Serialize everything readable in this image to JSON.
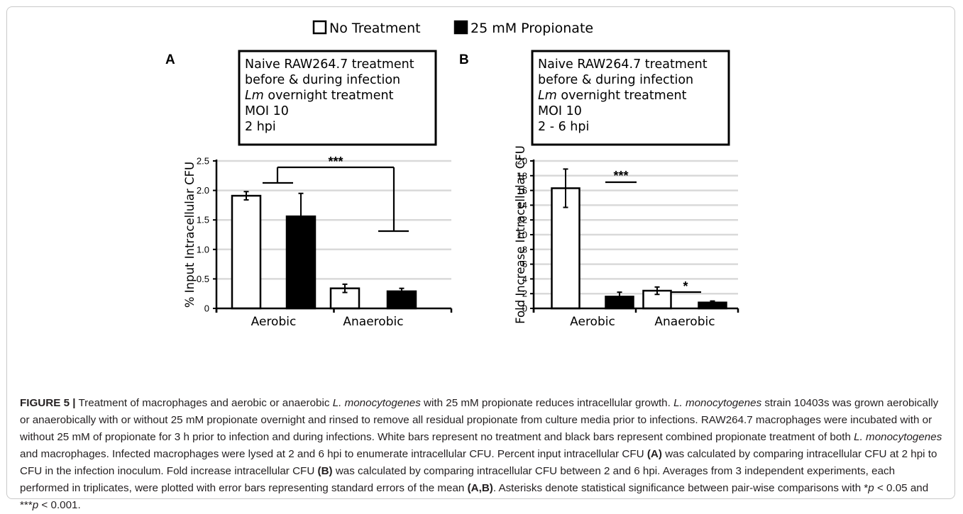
{
  "legend": {
    "items": [
      {
        "label": "No Treatment",
        "color": "#ffffff"
      },
      {
        "label": "25 mM Propionate",
        "color": "#000000"
      }
    ]
  },
  "chart_data": [
    {
      "panel": "A",
      "type": "bar",
      "info_lines": [
        [
          {
            "t": "Naive RAW264.7 treatment"
          }
        ],
        [
          {
            "t": "before & during infection"
          }
        ],
        [
          {
            "t": "Lm",
            "i": true
          },
          {
            "t": " overnight treatment"
          }
        ],
        [
          {
            "t": "MOI 10"
          }
        ],
        [
          {
            "t": "2 hpi"
          }
        ]
      ],
      "categories": [
        "Aerobic",
        "Anaerobic"
      ],
      "series": [
        {
          "name": "No Treatment",
          "values": [
            1.91,
            0.34
          ],
          "errors": [
            0.07,
            0.07
          ]
        },
        {
          "name": "25 mM Propionate",
          "values": [
            1.56,
            0.29
          ],
          "errors": [
            0.39,
            0.05
          ]
        }
      ],
      "ylabel": "% Input Intracellular CFU",
      "ylim": [
        0,
        2.5
      ],
      "yticks": [
        0,
        0.5,
        1.0,
        1.5,
        2.0,
        2.5
      ],
      "ytick_labels": [
        "0",
        "0.5",
        "1.0",
        "1.5",
        "2.0",
        "2.5"
      ],
      "grid": true,
      "significance": [
        {
          "label": "***",
          "between": "Aerobic vs Anaerobic"
        }
      ]
    },
    {
      "panel": "B",
      "type": "bar",
      "info_lines": [
        [
          {
            "t": "Naive RAW264.7 treatment"
          }
        ],
        [
          {
            "t": "before & during infection"
          }
        ],
        [
          {
            "t": "Lm",
            "i": true
          },
          {
            "t": " overnight treatment"
          }
        ],
        [
          {
            "t": "MOI 10"
          }
        ],
        [
          {
            "t": "2 - 6 hpi"
          }
        ]
      ],
      "categories": [
        "Aerobic",
        "Anaerobic"
      ],
      "series": [
        {
          "name": "No Treatment",
          "values": [
            16.3,
            2.4
          ],
          "errors": [
            2.6,
            0.5
          ]
        },
        {
          "name": "25 mM Propionate",
          "values": [
            1.6,
            0.8
          ],
          "errors": [
            0.6,
            0.2
          ]
        }
      ],
      "ylabel": "Fold Increase Intracellular CFU",
      "ylim": [
        0,
        20
      ],
      "yticks": [
        0,
        2,
        4,
        6,
        8,
        10,
        12,
        14,
        16,
        18,
        20
      ],
      "ytick_labels": [
        "0",
        "2",
        "4",
        "6",
        "8",
        "10",
        "12",
        "14",
        "16",
        "18",
        "20"
      ],
      "grid": true,
      "significance": [
        {
          "label": "***",
          "between": "Aerobic pair"
        },
        {
          "label": "*",
          "between": "Anaerobic pair"
        }
      ]
    }
  ],
  "caption": {
    "title": "FIGURE 5 |",
    "segments": [
      {
        "t": " Treatment of macrophages and aerobic or anaerobic "
      },
      {
        "t": "L. monocytogenes",
        "i": true
      },
      {
        "t": " with 25 mM propionate reduces intracellular growth. "
      },
      {
        "t": "L. monocytogenes",
        "i": true
      },
      {
        "t": " strain 10403s was grown aerobically or anaerobically with or without 25 mM propionate overnight and rinsed to remove all residual propionate from culture media prior to infections. RAW264.7 macrophages were incubated with or without 25 mM of propionate for 3 h prior to infection and during infections. White bars represent no treatment and black bars represent combined propionate treatment of both "
      },
      {
        "t": "L. monocytogenes",
        "i": true
      },
      {
        "t": " and macrophages. Infected macrophages were lysed at 2 and 6 hpi to enumerate intracellular CFU. Percent input intracellular CFU "
      },
      {
        "t": "(A)",
        "b": true
      },
      {
        "t": " was calculated by comparing intracellular CFU at 2 hpi to CFU in the infection inoculum. Fold increase intracellular CFU "
      },
      {
        "t": "(B)",
        "b": true
      },
      {
        "t": " was calculated by comparing intracellular CFU between 2 and 6 hpi. Averages from 3 independent experiments, each performed in triplicates, were plotted with error bars representing standard errors of the mean "
      },
      {
        "t": "(A,B)",
        "b": true
      },
      {
        "t": ". Asterisks denote statistical significance between pair-wise comparisons with *"
      },
      {
        "t": "p",
        "i": true
      },
      {
        "t": " < 0.05 and ***"
      },
      {
        "t": "p",
        "i": true
      },
      {
        "t": " < 0.001."
      }
    ]
  }
}
